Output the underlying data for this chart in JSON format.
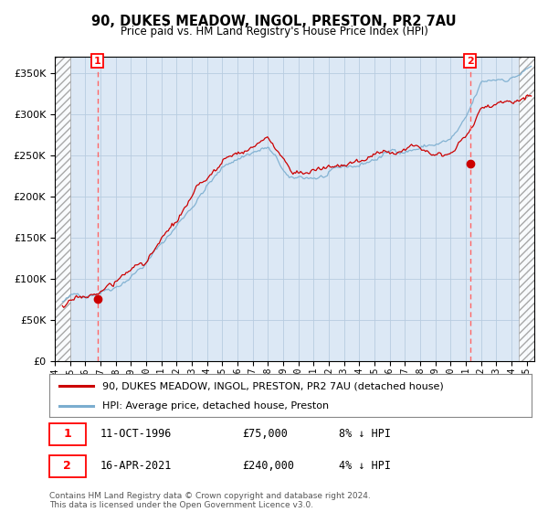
{
  "title": "90, DUKES MEADOW, INGOL, PRESTON, PR2 7AU",
  "subtitle": "Price paid vs. HM Land Registry's House Price Index (HPI)",
  "ylim": [
    0,
    370000
  ],
  "yticks": [
    0,
    50000,
    100000,
    150000,
    200000,
    250000,
    300000,
    350000
  ],
  "xlim_start": 1994.0,
  "xlim_end": 2025.5,
  "hatch_left_end": 1995.0,
  "hatch_right_start": 2024.5,
  "sale1_date": 1996.79,
  "sale1_price": 75000,
  "sale2_date": 2021.29,
  "sale2_price": 240000,
  "plot_bg": "#dce8f5",
  "grid_color": "#b8cce0",
  "red_line_color": "#cc0000",
  "blue_line_color": "#7aadcf",
  "dashed_line_color": "#ff6666",
  "legend_label1": "90, DUKES MEADOW, INGOL, PRESTON, PR2 7AU (detached house)",
  "legend_label2": "HPI: Average price, detached house, Preston",
  "footnote": "Contains HM Land Registry data © Crown copyright and database right 2024.\nThis data is licensed under the Open Government Licence v3.0."
}
